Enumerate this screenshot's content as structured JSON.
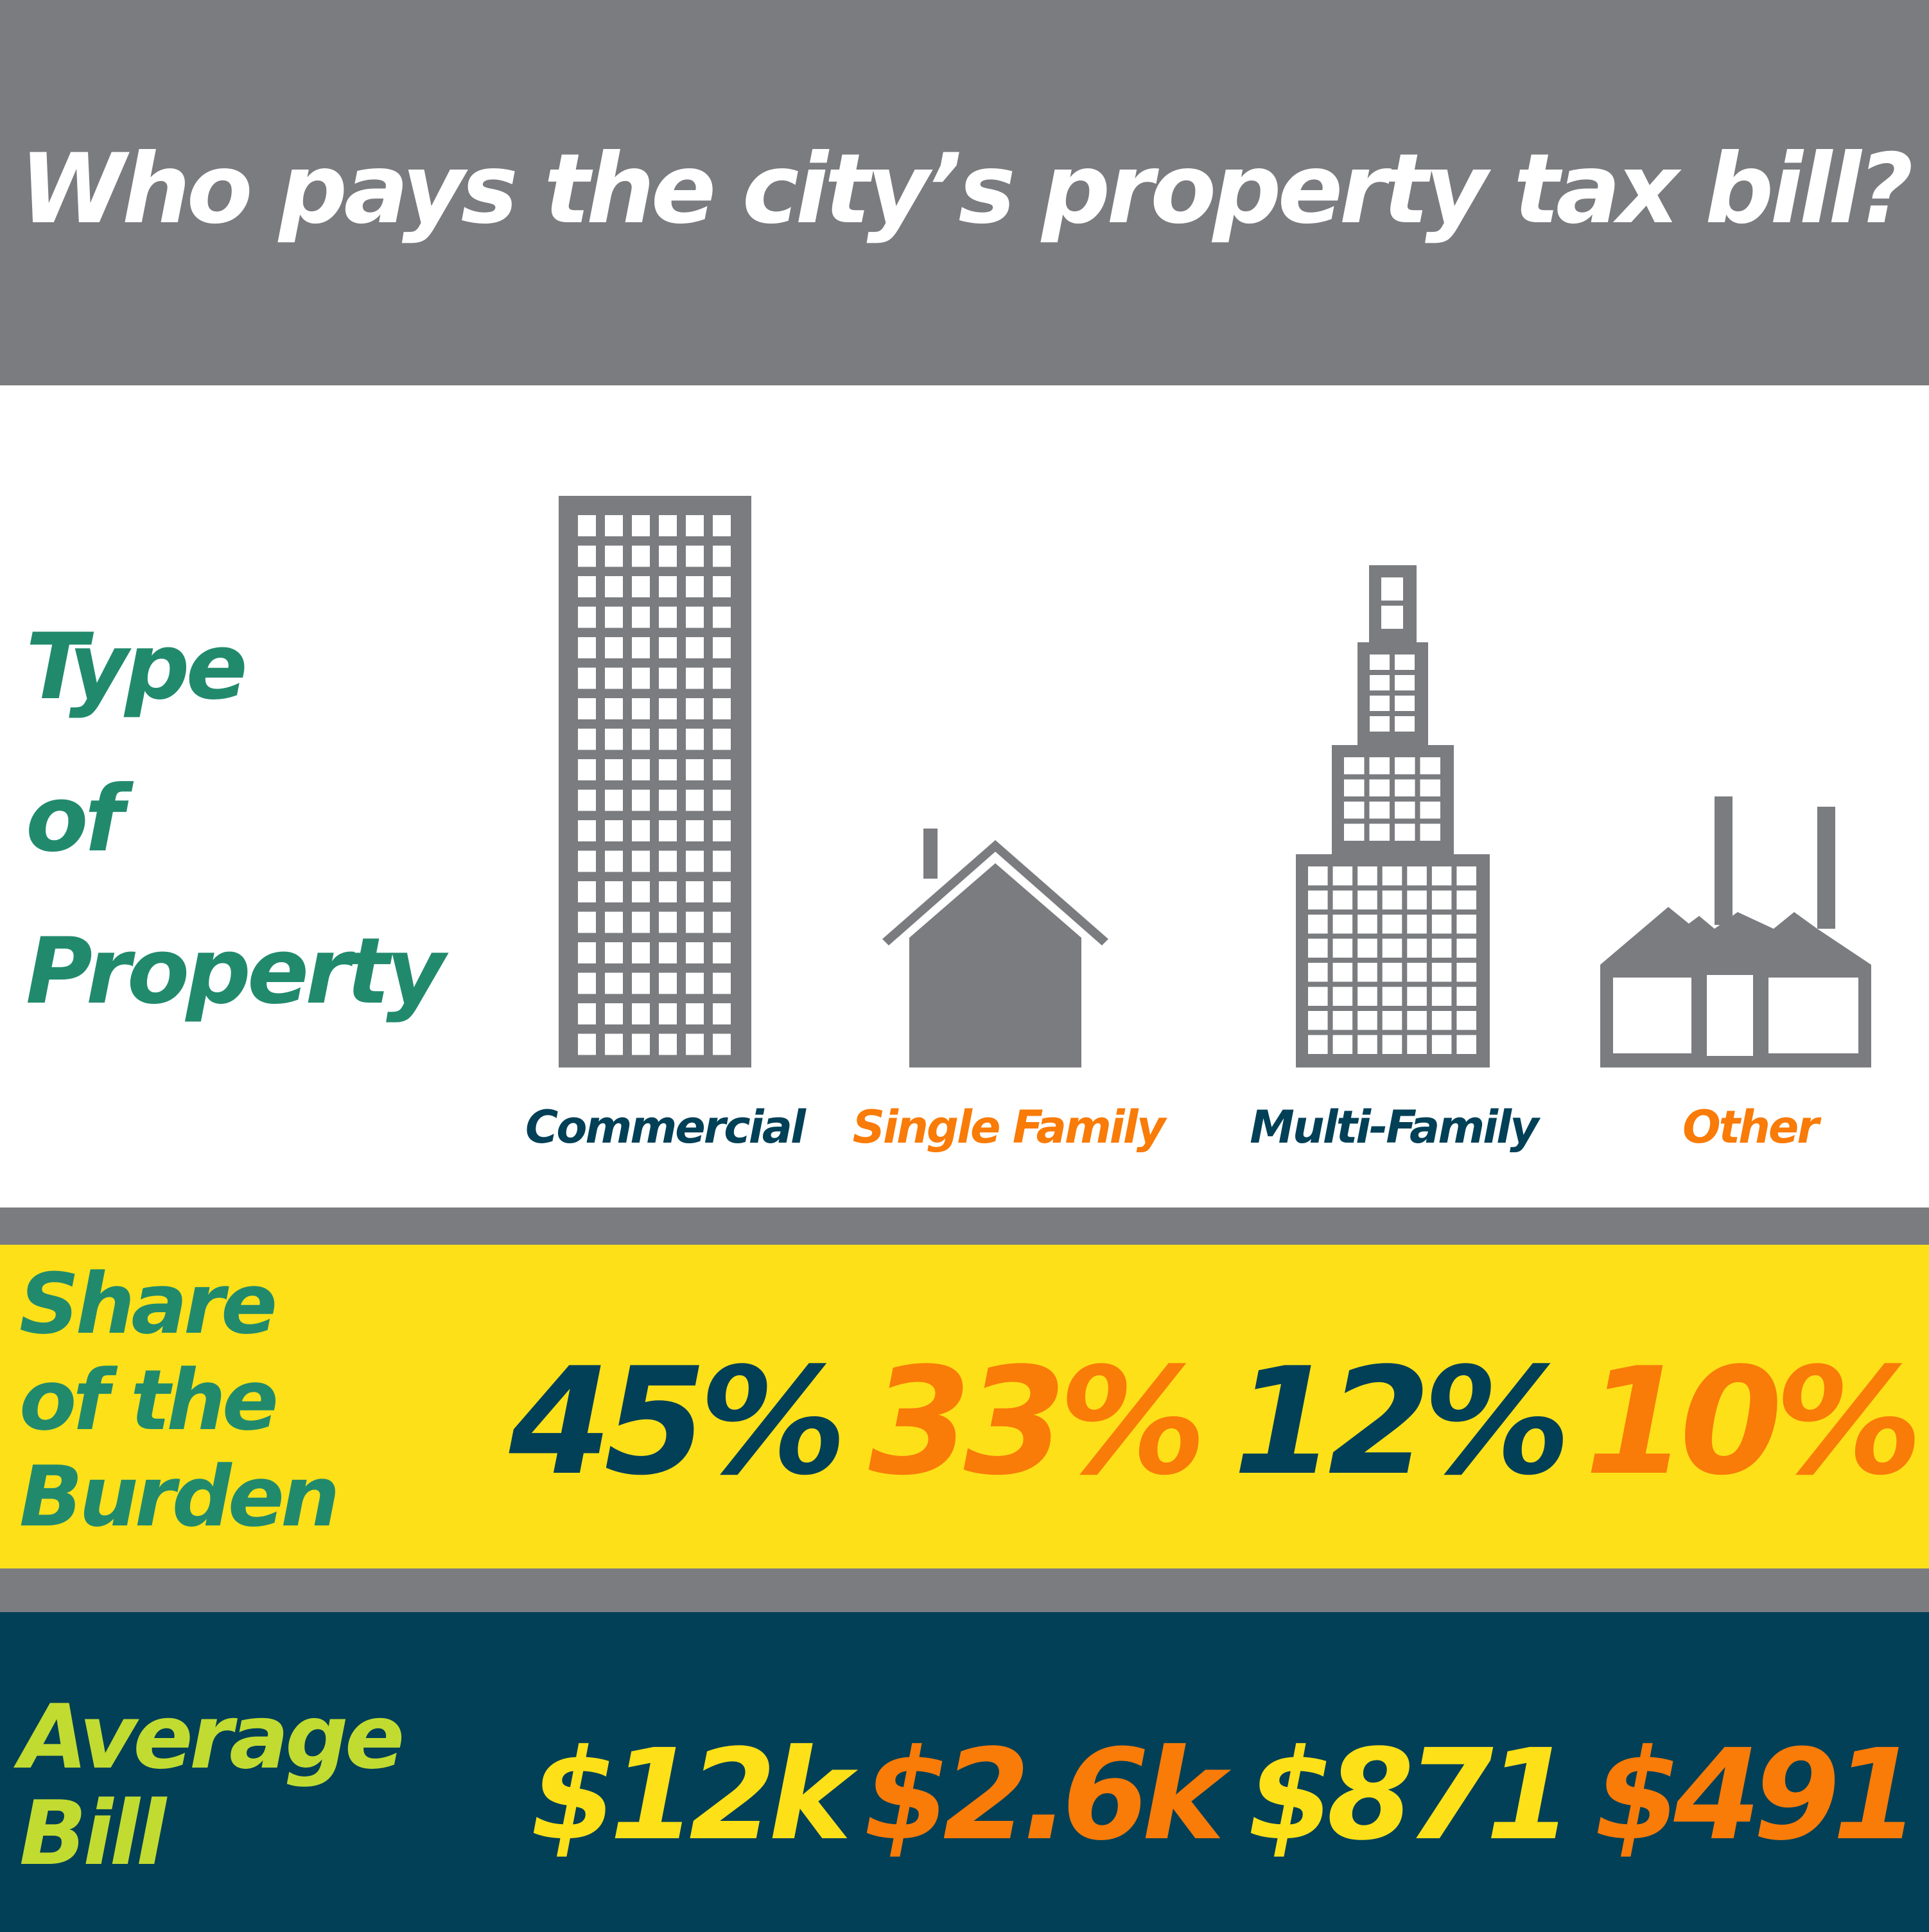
{
  "header": {
    "title": "Who pays the city’s property tax bill?"
  },
  "type_label": [
    "Type",
    "of",
    "Property"
  ],
  "share_label": [
    "Share",
    "of the",
    "Burden"
  ],
  "avg_label": [
    "Average",
    "Bill"
  ],
  "properties": [
    {
      "label": "Commercial",
      "share": "45%",
      "bill": "$12k",
      "color": "#014057",
      "bill_color": "#fde018",
      "icon": "office-tower-icon"
    },
    {
      "label": "Single Family",
      "share": "33%",
      "bill": "$2.6k",
      "color": "#f97b08",
      "bill_color": "#f97b08",
      "icon": "house-icon"
    },
    {
      "label": "Multi-Family",
      "share": "12%",
      "bill": "$871",
      "color": "#014057",
      "bill_color": "#fde018",
      "icon": "stepped-skyscraper-icon"
    },
    {
      "label": "Other",
      "share": "10%",
      "bill": "$491",
      "color": "#f97b08",
      "bill_color": "#f97b08",
      "icon": "factory-icon"
    }
  ],
  "colors": {
    "gray": "#7b7c80",
    "teal_green": "#218a6d",
    "navy": "#014057",
    "orange": "#f97b08",
    "yellow": "#fde018",
    "lime": "#c2db31"
  }
}
